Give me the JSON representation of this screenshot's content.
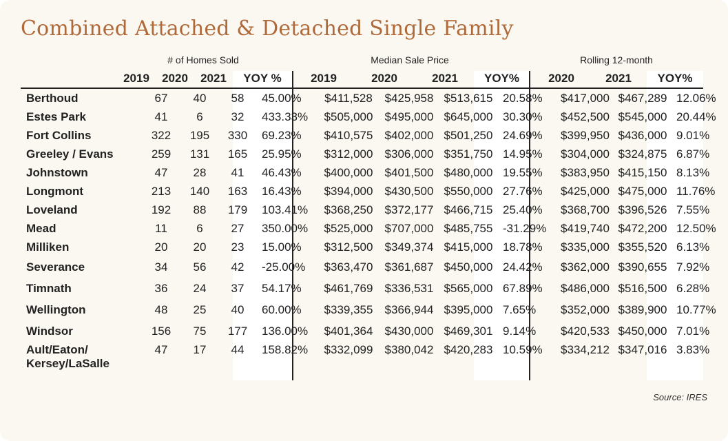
{
  "title": "Combined Attached & Detached Single Family",
  "groups": {
    "homes_sold": "# of Homes Sold",
    "median_price": "Median Sale Price",
    "rolling": "Rolling 12-month"
  },
  "headers": {
    "hs_2019": "2019",
    "hs_2020": "2020",
    "hs_2021": "2021",
    "hs_yoy": "YOY %",
    "mp_2019": "2019",
    "mp_2020": "2020",
    "mp_2021": "2021",
    "mp_yoy": "YOY%",
    "r_2020": "2020",
    "r_2021": "2021",
    "r_yoy": "YOY%"
  },
  "colors": {
    "title": "#b06a3a",
    "positive": "#1e7a5a",
    "negative": "#c8283c",
    "background": "#fbf8f1"
  },
  "rows": [
    {
      "city": "Berthoud",
      "hs": [
        "67",
        "40",
        "58",
        "45.00%"
      ],
      "mp": [
        "$411,528",
        "$425,958",
        "$513,615",
        "20.58%"
      ],
      "r": [
        "$417,000",
        "$467,289",
        "12.06%"
      ]
    },
    {
      "city": "Estes Park",
      "hs": [
        "41",
        "6",
        "32",
        "433.33%"
      ],
      "mp": [
        "$505,000",
        "$495,000",
        "$645,000",
        "30.30%"
      ],
      "r": [
        "$452,500",
        "$545,000",
        "20.44%"
      ]
    },
    {
      "city": "Fort Collins",
      "hs": [
        "322",
        "195",
        "330",
        "69.23%"
      ],
      "mp": [
        "$410,575",
        "$402,000",
        "$501,250",
        "24.69%"
      ],
      "r": [
        "$399,950",
        "$436,000",
        "9.01%"
      ]
    },
    {
      "city": "Greeley / Evans",
      "hs": [
        "259",
        "131",
        "165",
        "25.95%"
      ],
      "mp": [
        "$312,000",
        "$306,000",
        "$351,750",
        "14.95%"
      ],
      "r": [
        "$304,000",
        "$324,875",
        "6.87%"
      ]
    },
    {
      "city": "Johnstown",
      "hs": [
        "47",
        "28",
        "41",
        "46.43%"
      ],
      "mp": [
        "$400,000",
        "$401,500",
        "$480,000",
        "19.55%"
      ],
      "r": [
        "$383,950",
        "$415,150",
        "8.13%"
      ]
    },
    {
      "city": "Longmont",
      "hs": [
        "213",
        "140",
        "163",
        "16.43%"
      ],
      "mp": [
        "$394,000",
        "$430,500",
        "$550,000",
        "27.76%"
      ],
      "r": [
        "$425,000",
        "$475,000",
        "11.76%"
      ]
    },
    {
      "city": "Loveland",
      "hs": [
        "192",
        "88",
        "179",
        "103.41%"
      ],
      "mp": [
        "$368,250",
        "$372,177",
        "$466,715",
        "25.40%"
      ],
      "r": [
        "$368,700",
        "$396,526",
        "7.55%"
      ]
    },
    {
      "city": "Mead",
      "hs": [
        "11",
        "6",
        "27",
        "350.00%"
      ],
      "mp": [
        "$525,000",
        "$707,000",
        "$485,755",
        "-31.29%"
      ],
      "r": [
        "$419,740",
        "$472,200",
        "12.50%"
      ]
    },
    {
      "city": "Milliken",
      "hs": [
        "20",
        "20",
        "23",
        "15.00%"
      ],
      "mp": [
        "$312,500",
        "$349,374",
        "$415,000",
        "18.78%"
      ],
      "r": [
        "$335,000",
        "$355,520",
        "6.13%"
      ]
    },
    {
      "city": "Severance",
      "hs": [
        "34",
        "56",
        "42",
        "-25.00%"
      ],
      "mp": [
        "$363,470",
        "$361,687",
        "$450,000",
        "24.42%"
      ],
      "r": [
        "$362,000",
        "$390,655",
        "7.92%"
      ]
    },
    {
      "city": "Timnath",
      "hs": [
        "36",
        "24",
        "37",
        "54.17%"
      ],
      "mp": [
        "$461,769",
        "$336,531",
        "$565,000",
        "67.89%"
      ],
      "r": [
        "$486,000",
        "$516,500",
        "6.28%"
      ]
    },
    {
      "city": "Wellington",
      "hs": [
        "48",
        "25",
        "40",
        "60.00%"
      ],
      "mp": [
        "$339,355",
        "$366,944",
        "$395,000",
        "7.65%"
      ],
      "r": [
        "$352,000",
        "$389,900",
        "10.77%"
      ]
    },
    {
      "city": "Windsor",
      "hs": [
        "156",
        "75",
        "177",
        "136.00%"
      ],
      "mp": [
        "$401,364",
        "$430,000",
        "$469,301",
        "9.14%"
      ],
      "r": [
        "$420,533",
        "$450,000",
        "7.01%"
      ]
    },
    {
      "city_line1": "Ault/Eaton/",
      "city_line2": "Kersey/LaSalle",
      "hs": [
        "47",
        "17",
        "44",
        "158.82%"
      ],
      "mp": [
        "$332,099",
        "$380,042",
        "$420,283",
        "10.59%"
      ],
      "r": [
        "$334,212",
        "$347,016",
        "3.83%"
      ]
    }
  ],
  "source": "Source: IRES"
}
